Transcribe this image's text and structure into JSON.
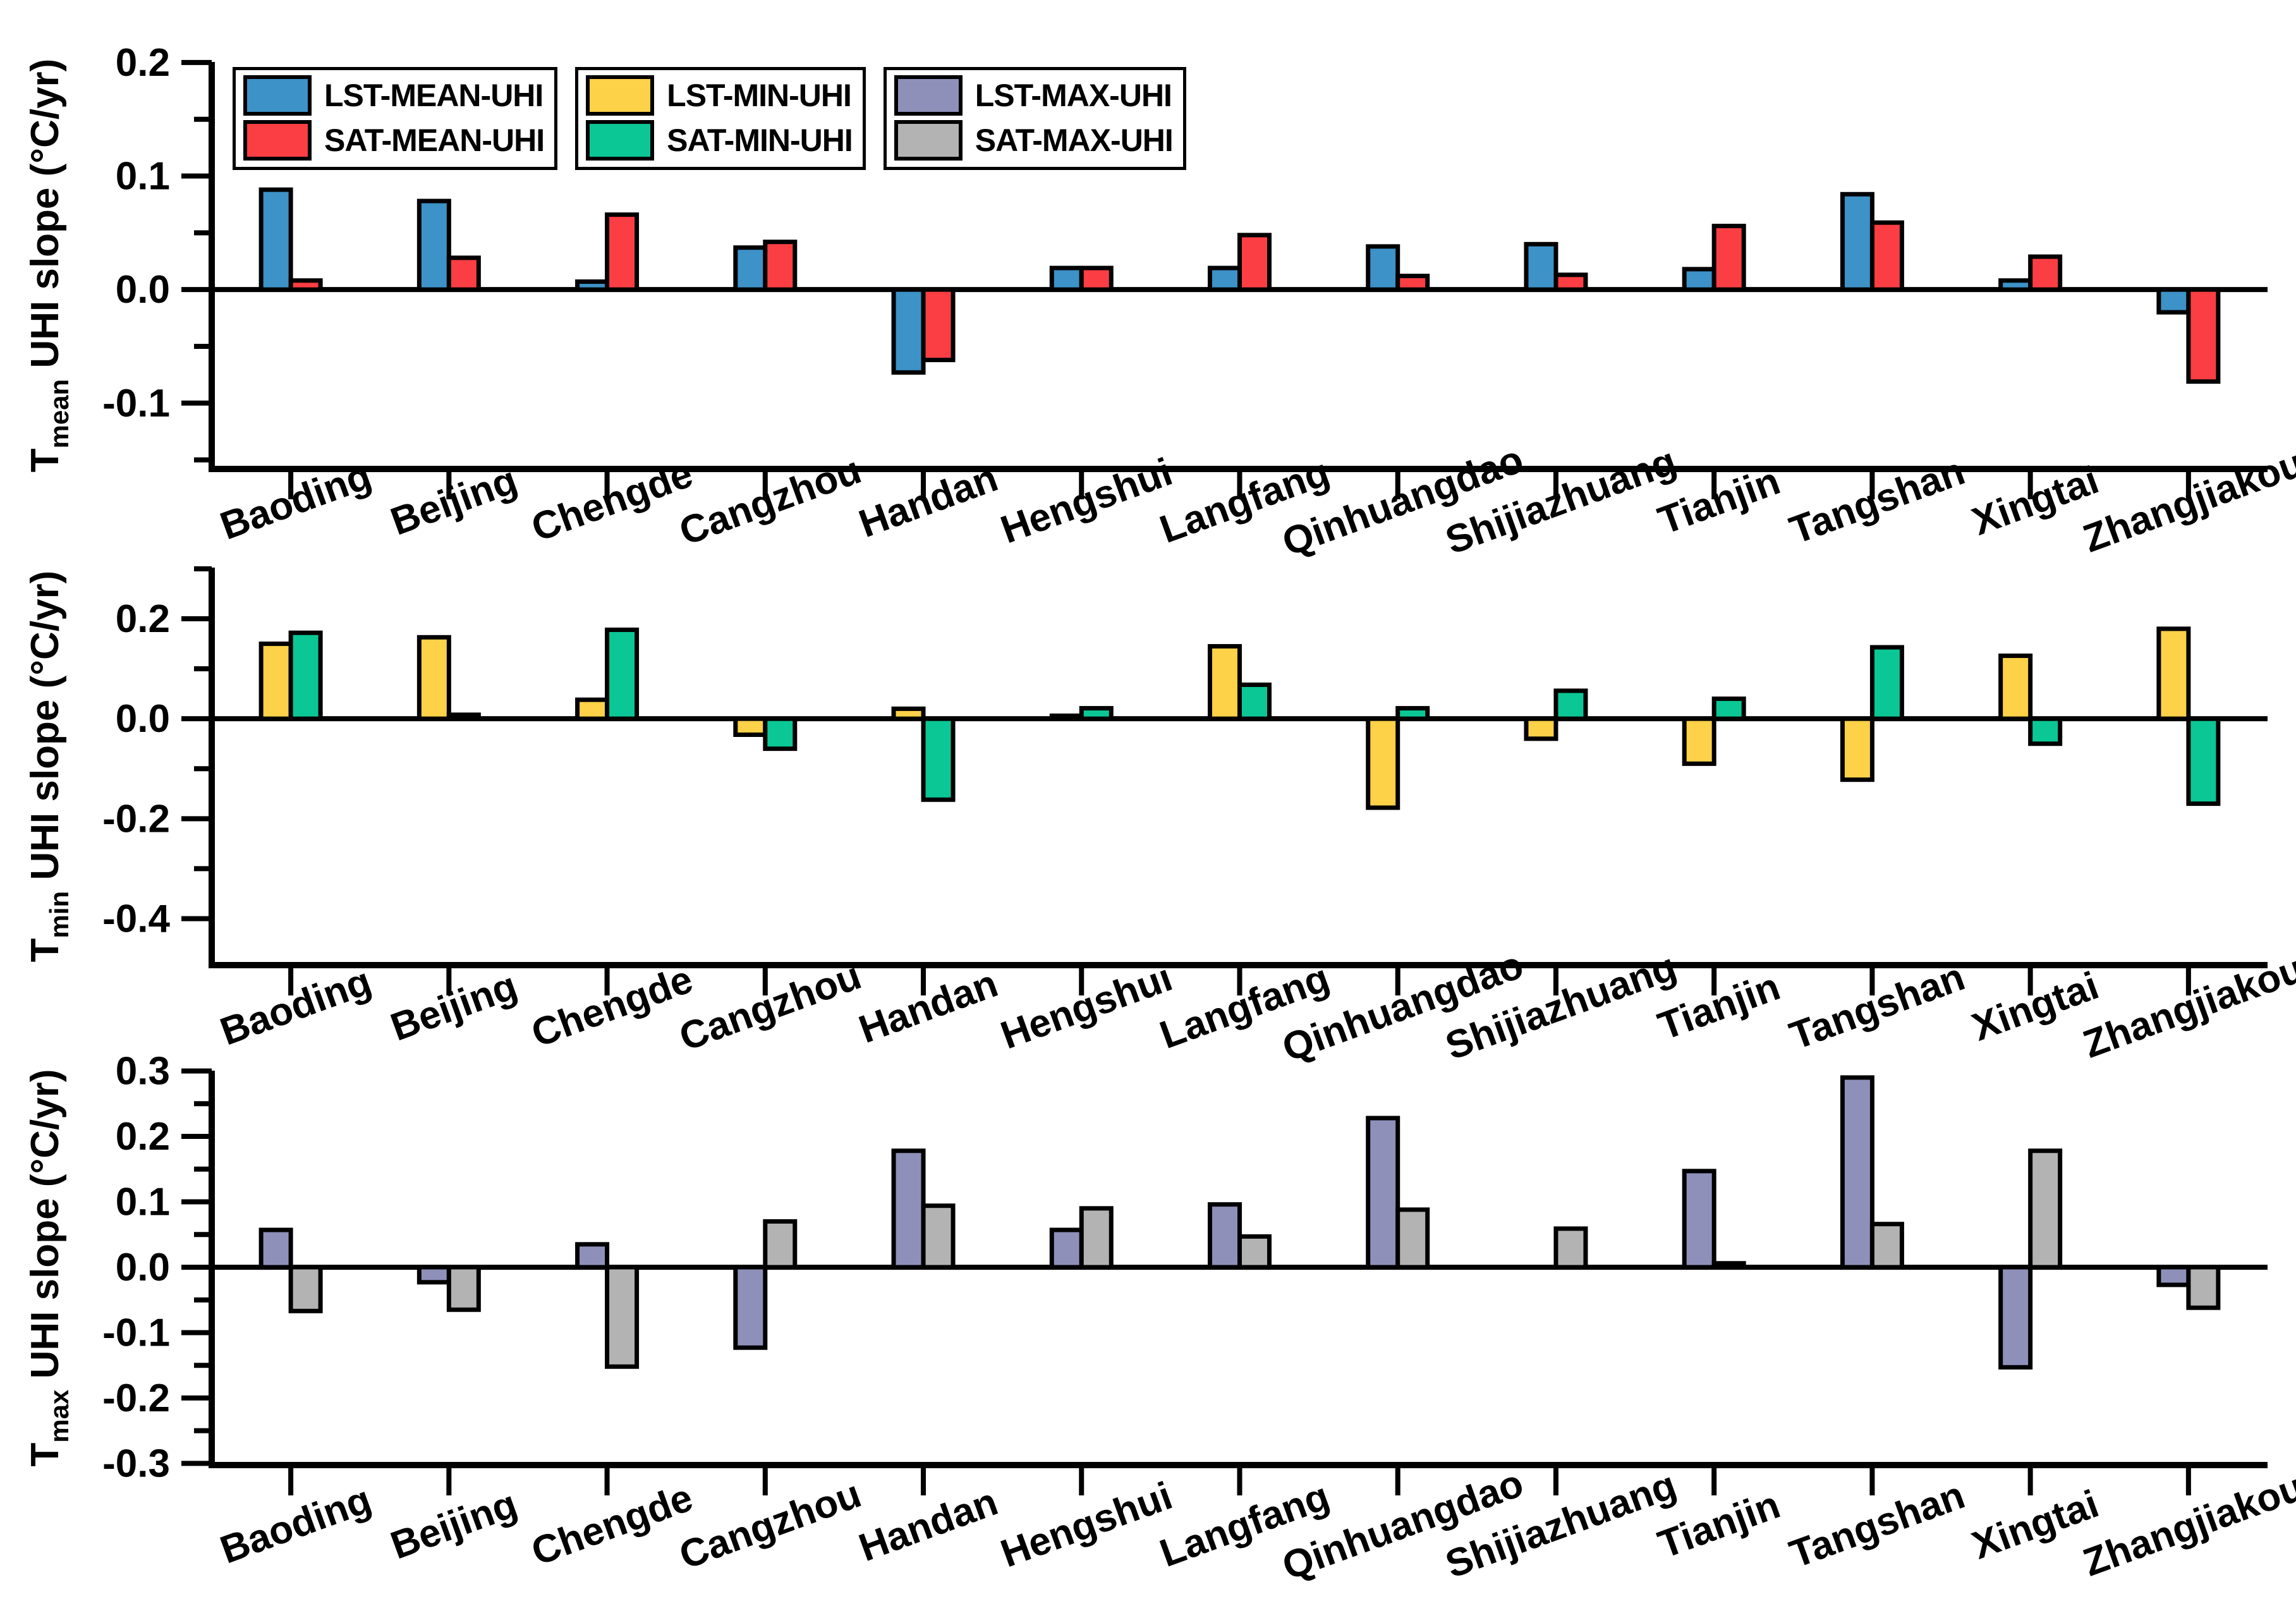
{
  "figure": {
    "background": "#ffffff",
    "text_color": "#000000",
    "axis_color": "#000000"
  },
  "chart_data": [
    {
      "type": "bar",
      "panel": "tmean",
      "ylabel": {
        "prefix": "T",
        "sub": "mean",
        "suffix": " UHI slope (°C/yr)"
      },
      "categories": [
        "Baoding",
        "Beijing",
        "Chengde",
        "Cangzhou",
        "Handan",
        "Hengshui",
        "Langfang",
        "Qinhuangdao",
        "Shijiazhuang",
        "Tianjin",
        "Tangshan",
        "Xingtai",
        "Zhangjiakou"
      ],
      "series": [
        {
          "name": "LST-MEAN-UHI",
          "color": "#3D92C8",
          "values": [
            0.088,
            0.078,
            0.007,
            0.037,
            -0.073,
            0.019,
            0.019,
            0.038,
            0.04,
            0.018,
            0.084,
            0.008,
            -0.02
          ]
        },
        {
          "name": "SAT-MEAN-UHI",
          "color": "#FB3E43",
          "values": [
            0.008,
            0.028,
            0.066,
            0.042,
            -0.062,
            0.019,
            0.048,
            0.012,
            0.013,
            0.056,
            0.059,
            0.029,
            -0.081
          ]
        }
      ],
      "ylim": [
        -0.158,
        0.2005
      ],
      "yticks": [
        0.2,
        0.1,
        0.0,
        -0.1
      ],
      "minor_step": 0.05,
      "grid": false,
      "legend_position": "top-left"
    },
    {
      "type": "bar",
      "panel": "tmin",
      "ylabel": {
        "prefix": "T",
        "sub": "min",
        "suffix": " UHI slope (°C/yr)"
      },
      "categories": [
        "Baoding",
        "Beijing",
        "Chengde",
        "Cangzhou",
        "Handan",
        "Hengshui",
        "Langfang",
        "Qinhuangdao",
        "Shijiazhuang",
        "Tianjin",
        "Tangshan",
        "Xingtai",
        "Zhangjiakou"
      ],
      "series": [
        {
          "name": "LST-MIN-UHI",
          "color": "#FDD148",
          "values": [
            0.15,
            0.163,
            0.038,
            -0.032,
            0.02,
            0.006,
            0.145,
            -0.178,
            -0.04,
            -0.09,
            -0.122,
            0.126,
            0.18
          ]
        },
        {
          "name": "SAT-MIN-UHI",
          "color": "#0BC795",
          "values": [
            0.172,
            0.008,
            0.178,
            -0.06,
            -0.162,
            0.021,
            0.068,
            0.021,
            0.056,
            0.04,
            0.143,
            -0.05,
            -0.17
          ]
        }
      ],
      "ylim": [
        -0.493,
        0.3025
      ],
      "yticks": [
        0.2,
        0.0,
        -0.2,
        -0.4
      ],
      "minor_step": 0.1,
      "grid": false,
      "legend_position": "none"
    },
    {
      "type": "bar",
      "panel": "tmax",
      "ylabel": {
        "prefix": "T",
        "sub": "max",
        "suffix": " UHI slope (°C/yr)"
      },
      "categories": [
        "Baoding",
        "Beijing",
        "Chengde",
        "Cangzhou",
        "Handan",
        "Hengshui",
        "Langfang",
        "Qinhuangdao",
        "Shijiazhuang",
        "Tianjin",
        "Tangshan",
        "Xingtai",
        "Zhangjiakou"
      ],
      "series": [
        {
          "name": "LST-MAX-UHI",
          "color": "#8F90BA",
          "values": [
            0.057,
            -0.023,
            0.035,
            -0.123,
            0.178,
            0.057,
            0.096,
            0.228,
            0,
            0.147,
            0.29,
            -0.153,
            -0.027
          ]
        },
        {
          "name": "SAT-MAX-UHI",
          "color": "#B3B3B3",
          "values": [
            -0.067,
            -0.065,
            -0.152,
            0.07,
            0.094,
            0.09,
            0.047,
            0.088,
            0.059,
            0.006,
            0.066,
            0.178,
            -0.062
          ]
        }
      ],
      "ylim": [
        -0.3025,
        0.3005
      ],
      "yticks": [
        0.3,
        0.2,
        0.1,
        0.0,
        -0.1,
        -0.2,
        -0.3
      ],
      "minor_step": 0.05,
      "grid": false,
      "legend_position": "none"
    }
  ]
}
